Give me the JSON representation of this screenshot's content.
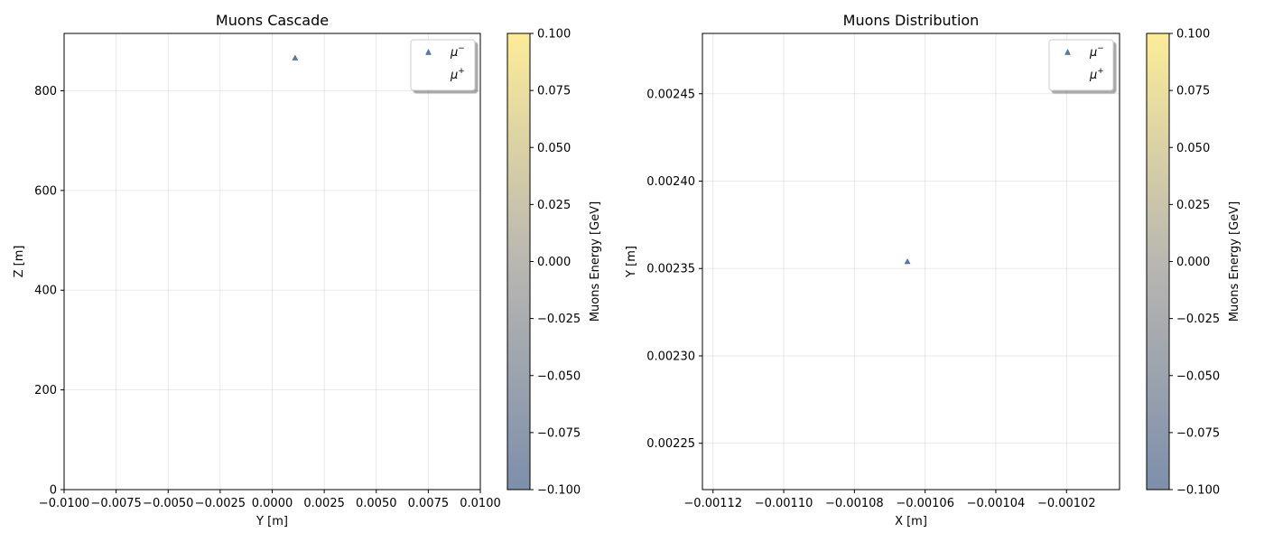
{
  "chart_data": [
    {
      "type": "scatter",
      "title": "Muons Cascade",
      "xlabel": "Y [m]",
      "ylabel": "Z [m]",
      "xlim": [
        -0.01,
        0.01
      ],
      "ylim": [
        0,
        915
      ],
      "xticks": [
        -0.01,
        -0.0075,
        -0.005,
        -0.0025,
        0.0,
        0.0025,
        0.005,
        0.0075,
        0.01
      ],
      "xtick_labels": [
        "−0.0100",
        "−0.0075",
        "−0.0050",
        "−0.0025",
        "0.0000",
        "0.0025",
        "0.0050",
        "0.0075",
        "0.0100"
      ],
      "yticks": [
        0,
        200,
        400,
        600,
        800
      ],
      "ytick_labels": [
        "0",
        "200",
        "400",
        "600",
        "800"
      ],
      "grid": true,
      "legend_position": "top-right",
      "series": [
        {
          "name": "μ⁻",
          "label_base": "μ",
          "label_sup": "−",
          "marker": "triangle",
          "color": "#5a7aa8",
          "points": [
            {
              "x": 0.0011,
              "y": 866
            }
          ]
        },
        {
          "name": "μ⁺",
          "label_base": "μ",
          "label_sup": "+",
          "marker": "triangle",
          "color": "#5a7aa8",
          "points": []
        }
      ],
      "colorbar": {
        "label": "Muons Energy [GeV]",
        "range": [
          -0.1,
          0.1
        ],
        "ticks": [
          -0.1,
          -0.075,
          -0.05,
          -0.025,
          0.0,
          0.025,
          0.05,
          0.075,
          0.1
        ],
        "tick_labels": [
          "−0.100",
          "−0.075",
          "−0.050",
          "−0.025",
          "0.000",
          "0.025",
          "0.050",
          "0.075",
          "0.100"
        ],
        "color_low": "#7d8fab",
        "color_mid": "#b9b7b1",
        "color_high": "#fcec98"
      }
    },
    {
      "type": "scatter",
      "title": "Muons Distribution",
      "xlabel": "X [m]",
      "ylabel": "Y [m]",
      "xlim": [
        -0.001123,
        -0.001005
      ],
      "ylim": [
        0.0022235,
        0.0024845
      ],
      "xticks": [
        -0.00112,
        -0.0011,
        -0.00108,
        -0.00106,
        -0.00104,
        -0.00102
      ],
      "xtick_labels": [
        "−0.00112",
        "−0.00110",
        "−0.00108",
        "−0.00106",
        "−0.00104",
        "−0.00102"
      ],
      "yticks": [
        0.00225,
        0.0023,
        0.00235,
        0.0024,
        0.00245
      ],
      "ytick_labels": [
        "0.00225",
        "0.00230",
        "0.00235",
        "0.00240",
        "0.00245"
      ],
      "grid": true,
      "legend_position": "top-right",
      "series": [
        {
          "name": "μ⁻",
          "label_base": "μ",
          "label_sup": "−",
          "marker": "triangle",
          "color": "#5a7aa8",
          "points": [
            {
              "x": -0.001065,
              "y": 0.002354
            }
          ]
        },
        {
          "name": "μ⁺",
          "label_base": "μ",
          "label_sup": "+",
          "marker": "triangle",
          "color": "#5a7aa8",
          "points": []
        }
      ],
      "colorbar": {
        "label": "Muons Energy [GeV]",
        "range": [
          -0.1,
          0.1
        ],
        "ticks": [
          -0.1,
          -0.075,
          -0.05,
          -0.025,
          0.0,
          0.025,
          0.05,
          0.075,
          0.1
        ],
        "tick_labels": [
          "−0.100",
          "−0.075",
          "−0.050",
          "−0.025",
          "0.000",
          "0.025",
          "0.050",
          "0.075",
          "0.100"
        ],
        "color_low": "#7d8fab",
        "color_mid": "#b9b7b1",
        "color_high": "#fcec98"
      }
    }
  ]
}
